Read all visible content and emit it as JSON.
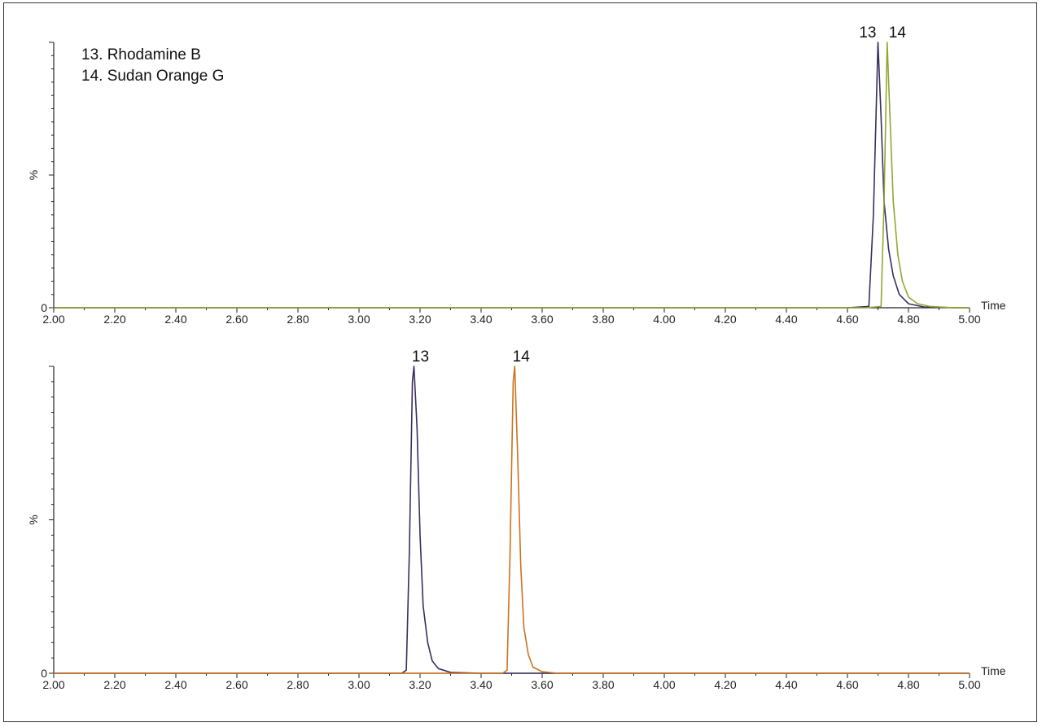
{
  "chart_data": [
    {
      "type": "line",
      "xlabel": "Time",
      "ylabel": "%",
      "xlim": [
        2.0,
        5.0
      ],
      "ylim": [
        0,
        100
      ],
      "x_ticks": [
        "2.00",
        "2.20",
        "2.40",
        "2.60",
        "2.80",
        "3.00",
        "3.20",
        "3.40",
        "3.60",
        "3.80",
        "4.00",
        "4.20",
        "4.40",
        "4.60",
        "4.80",
        "5.00"
      ],
      "y_tick_labels": [
        "0",
        "%"
      ],
      "legend": [
        "13.  Rhodamine B",
        "14.  Sudan Orange G"
      ],
      "peak_labels": [
        {
          "text": "13",
          "x": 4.7
        },
        {
          "text": "14",
          "x": 4.73
        }
      ],
      "series": [
        {
          "color": "#3b2d5e",
          "x": [
            2.0,
            4.6,
            4.67,
            4.685,
            4.7,
            4.71,
            4.72,
            4.735,
            4.75,
            4.77,
            4.8,
            4.85,
            4.95,
            5.0
          ],
          "y": [
            0,
            0,
            0.5,
            35,
            100,
            72,
            40,
            22,
            12,
            5,
            1.5,
            0.3,
            0,
            0
          ]
        },
        {
          "color": "#8fa832",
          "x": [
            2.0,
            4.66,
            4.71,
            4.72,
            4.73,
            4.74,
            4.75,
            4.765,
            4.78,
            4.8,
            4.83,
            4.87,
            4.95,
            5.0
          ],
          "y": [
            0,
            0,
            0.5,
            40,
            100,
            70,
            40,
            20,
            10,
            4,
            1.5,
            0.5,
            0,
            0
          ]
        }
      ]
    },
    {
      "type": "line",
      "xlabel": "Time",
      "ylabel": "%",
      "xlim": [
        2.0,
        5.0
      ],
      "ylim": [
        0,
        100
      ],
      "x_ticks": [
        "2.00",
        "2.20",
        "2.40",
        "2.60",
        "2.80",
        "3.00",
        "3.20",
        "3.40",
        "3.60",
        "3.80",
        "4.00",
        "4.20",
        "4.40",
        "4.60",
        "4.80",
        "5.00"
      ],
      "y_tick_labels": [
        "0",
        "%"
      ],
      "peak_labels": [
        {
          "text": "13",
          "x": 3.18
        },
        {
          "text": "14",
          "x": 3.51
        }
      ],
      "series": [
        {
          "color": "#3b2d5e",
          "x": [
            2.0,
            3.14,
            3.155,
            3.165,
            3.175,
            3.18,
            3.19,
            3.2,
            3.21,
            3.225,
            3.24,
            3.26,
            3.3,
            3.4,
            5.0
          ],
          "y": [
            0,
            0,
            1,
            40,
            95,
            100,
            80,
            45,
            22,
            10,
            4,
            1.5,
            0.3,
            0,
            0
          ]
        },
        {
          "color": "#c9741f",
          "x": [
            2.0,
            3.47,
            3.485,
            3.495,
            3.505,
            3.51,
            3.52,
            3.53,
            3.54,
            3.555,
            3.57,
            3.6,
            3.65,
            5.0
          ],
          "y": [
            0,
            0,
            1,
            40,
            95,
            100,
            70,
            35,
            15,
            6,
            2,
            0.5,
            0,
            0
          ]
        }
      ]
    }
  ]
}
